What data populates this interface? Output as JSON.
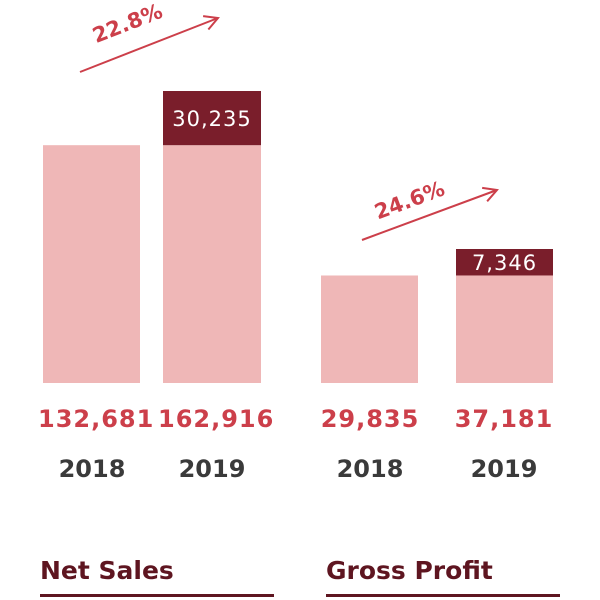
{
  "colors": {
    "base": "#efb7b7",
    "increment": "#7a1e2b",
    "value_text": "#cc3f4a",
    "year_text": "#3a3a3a",
    "title_text": "#5e1520",
    "growth_text": "#cc3f4a"
  },
  "chart_data": [
    {
      "type": "bar",
      "title": "Net Sales",
      "categories": [
        "2018",
        "2019"
      ],
      "values": [
        132681,
        162916
      ],
      "value_labels": [
        "132,681",
        "162,916"
      ],
      "increment": {
        "value": 30235,
        "label": "30,235"
      },
      "growth_label": "22.8%",
      "ylim": [
        0,
        165000
      ]
    },
    {
      "type": "bar",
      "title": "Gross Profit",
      "categories": [
        "2018",
        "2019"
      ],
      "values": [
        29835,
        37181
      ],
      "value_labels": [
        "29,835",
        "37,181"
      ],
      "increment": {
        "value": 7346,
        "label": "7,346"
      },
      "growth_label": "24.6%",
      "ylim": [
        0,
        37500
      ]
    }
  ]
}
